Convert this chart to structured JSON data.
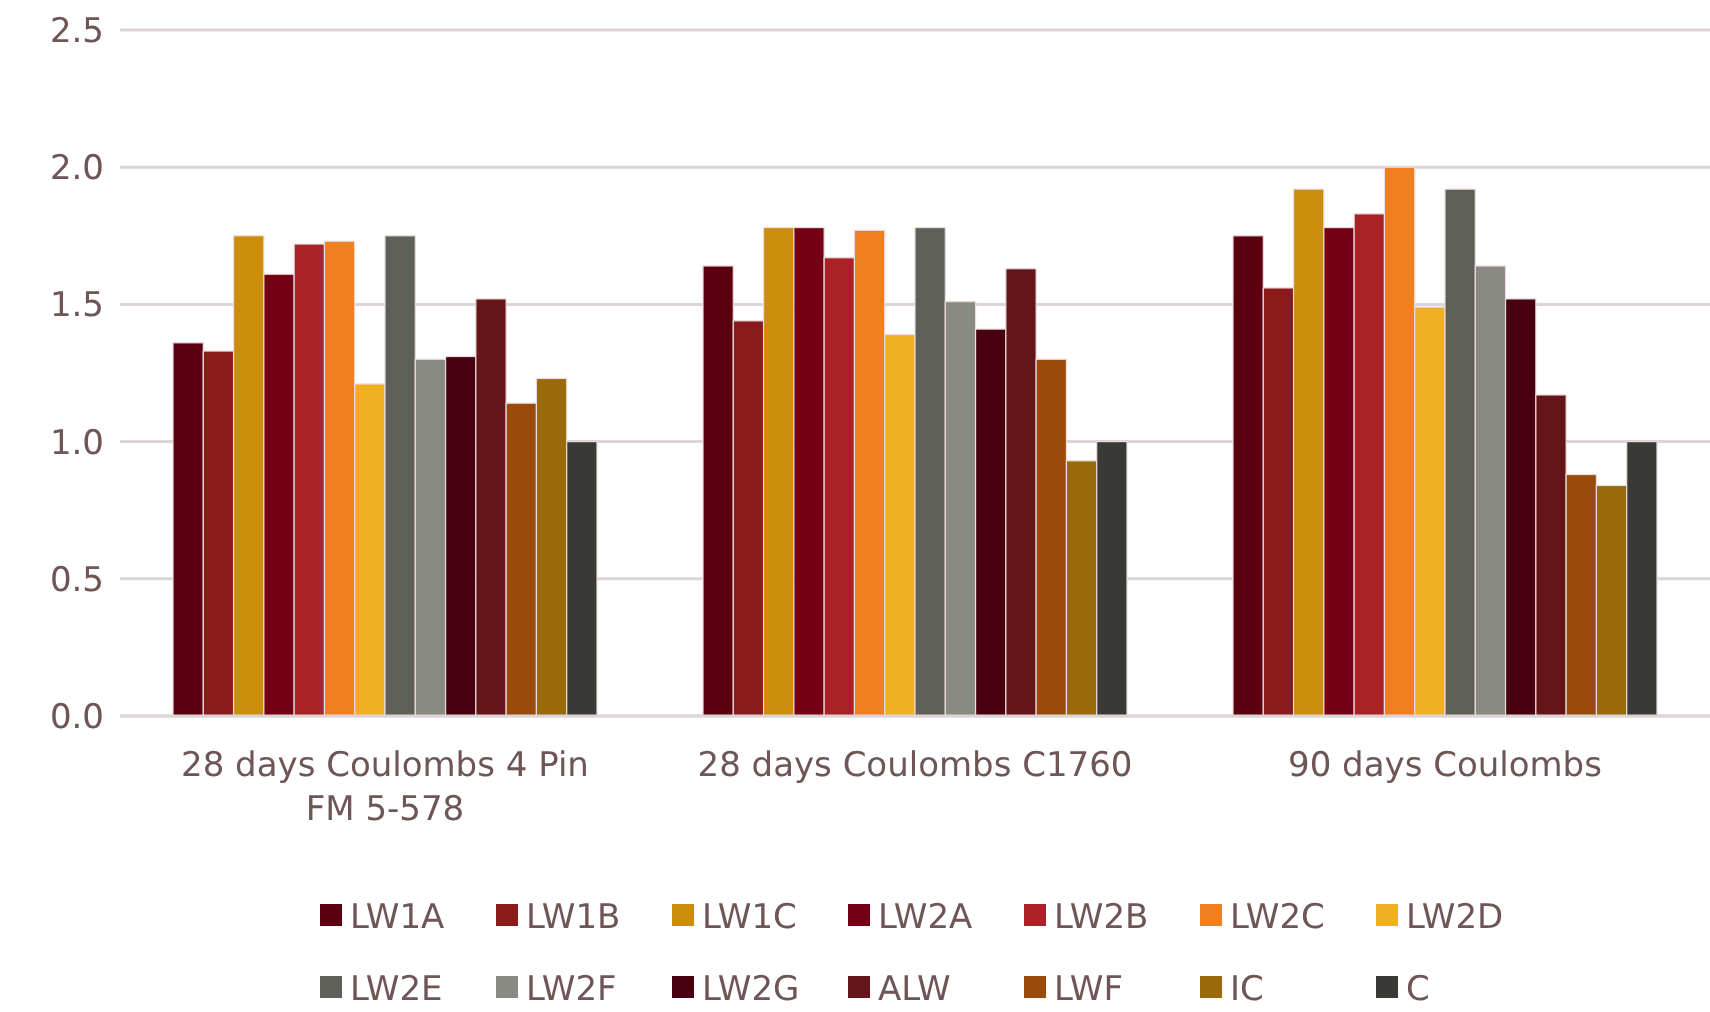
{
  "chart_data": {
    "type": "bar",
    "categories": [
      "28 days Coulombs 4 Pin FM 5-578",
      "28 days Coulombs C1760",
      "90 days Coulombs"
    ],
    "series": [
      {
        "name": "LW1A",
        "color": "#5c0010",
        "values": [
          1.36,
          1.64,
          1.75
        ]
      },
      {
        "name": "LW1B",
        "color": "#8b1a1a",
        "values": [
          1.33,
          1.44,
          1.56
        ]
      },
      {
        "name": "LW1C",
        "color": "#cc8c0c",
        "values": [
          1.75,
          1.78,
          1.92
        ]
      },
      {
        "name": "LW2A",
        "color": "#750014",
        "values": [
          1.61,
          1.78,
          1.78
        ]
      },
      {
        "name": "LW2B",
        "color": "#a82226",
        "values": [
          1.72,
          1.67,
          1.83
        ]
      },
      {
        "name": "LW2C",
        "color": "#f07f20",
        "values": [
          1.73,
          1.77,
          2.0
        ]
      },
      {
        "name": "LW2D",
        "color": "#f0ae22",
        "values": [
          1.21,
          1.39,
          1.49
        ]
      },
      {
        "name": "LW2E",
        "color": "#5e5f58",
        "values": [
          1.75,
          1.78,
          1.92
        ]
      },
      {
        "name": "LW2F",
        "color": "#8a8a84",
        "values": [
          1.3,
          1.51,
          1.64
        ]
      },
      {
        "name": "LW2G",
        "color": "#480010",
        "values": [
          1.31,
          1.41,
          1.52
        ]
      },
      {
        "name": "ALW",
        "color": "#651418",
        "values": [
          1.52,
          1.63,
          1.17
        ]
      },
      {
        "name": "LWF",
        "color": "#9a4a0a",
        "values": [
          1.14,
          1.3,
          0.88
        ]
      },
      {
        "name": "IC",
        "color": "#9a6a0a",
        "values": [
          1.23,
          0.93,
          0.84
        ]
      },
      {
        "name": "C",
        "color": "#393a35",
        "values": [
          1.0,
          1.0,
          1.0
        ]
      }
    ],
    "ylim": [
      0,
      2.5
    ],
    "yticks": [
      {
        "value": 0,
        "label": "0.0"
      },
      0.5,
      {
        "value": 1,
        "label": "1.0"
      },
      1.5,
      {
        "value": 2,
        "label": "2.0"
      },
      2.5
    ],
    "grid": "y",
    "legend": "bottom"
  }
}
